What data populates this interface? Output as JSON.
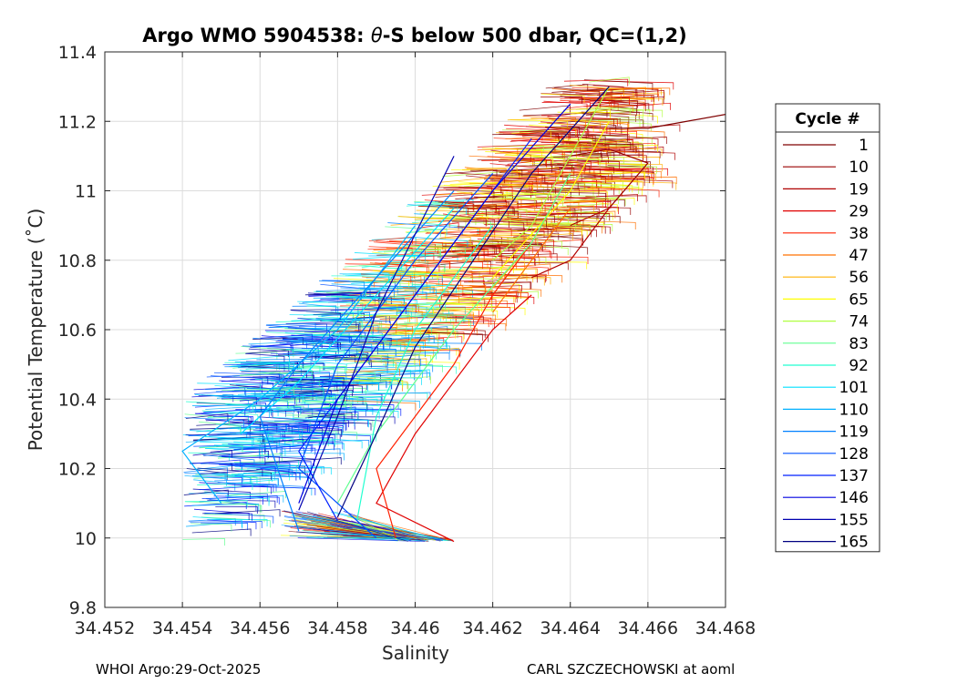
{
  "chart_data": {
    "type": "line",
    "title_prefix": "Argo WMO 5904538: ",
    "title_theta": "θ",
    "title_suffix": "-S below 500 dbar,  QC=(1,2)",
    "xlabel": "Salinity",
    "ylabel": "Potential Temperature (˚C)",
    "xlim": [
      34.452,
      34.468
    ],
    "ylim": [
      9.8,
      11.4
    ],
    "x_ticks": [
      34.452,
      34.454,
      34.456,
      34.458,
      34.46,
      34.462,
      34.464,
      34.466,
      34.468
    ],
    "x_tick_labels": [
      "34.452",
      "34.454",
      "34.456",
      "34.458",
      "34.46",
      "34.462",
      "34.464",
      "34.466",
      "34.468"
    ],
    "y_ticks": [
      9.8,
      10,
      10.2,
      10.4,
      10.6,
      10.8,
      11,
      11.2,
      11.4
    ],
    "y_tick_labels": [
      "9.8",
      "10",
      "10.2",
      "10.4",
      "10.6",
      "10.8",
      "11",
      "11.2",
      "11.4"
    ],
    "grid": true,
    "legend_title": "Cycle #",
    "legend_placement": "right-outside",
    "series": [
      {
        "name": "1",
        "color": "#7f0000",
        "points": [
          [
            34.465,
            11.18
          ],
          [
            34.466,
            11.18
          ],
          [
            34.467,
            11.2
          ],
          [
            34.468,
            11.22
          ]
        ]
      },
      {
        "name": "10",
        "color": "#9a0000",
        "points": [
          [
            34.464,
            11.1
          ],
          [
            34.465,
            11.12
          ],
          [
            34.466,
            11.08
          ],
          [
            34.465,
            10.95
          ]
        ]
      },
      {
        "name": "19",
        "color": "#b00000",
        "points": [
          [
            34.464,
            10.9
          ],
          [
            34.465,
            10.95
          ],
          [
            34.464,
            10.8
          ],
          [
            34.463,
            10.75
          ]
        ]
      },
      {
        "name": "29",
        "color": "#e00000",
        "points": [
          [
            34.463,
            10.7
          ],
          [
            34.462,
            10.6
          ],
          [
            34.461,
            10.45
          ],
          [
            34.46,
            10.3
          ],
          [
            34.459,
            10.1
          ],
          [
            34.461,
            9.99
          ]
        ]
      },
      {
        "name": "38",
        "color": "#ff2000",
        "points": [
          [
            34.463,
            10.85
          ],
          [
            34.462,
            10.7
          ],
          [
            34.461,
            10.5
          ],
          [
            34.459,
            10.2
          ],
          [
            34.4595,
            10.0
          ]
        ]
      },
      {
        "name": "47",
        "color": "#ff7000",
        "points": [
          [
            34.464,
            10.95
          ],
          [
            34.463,
            10.8
          ],
          [
            34.462,
            10.65
          ]
        ]
      },
      {
        "name": "56",
        "color": "#ffb000",
        "points": [
          [
            34.464,
            11.05
          ],
          [
            34.463,
            10.85
          ],
          [
            34.462,
            10.72
          ]
        ]
      },
      {
        "name": "65",
        "color": "#ffff00",
        "points": [
          [
            34.465,
            11.2
          ],
          [
            34.464,
            11.0
          ],
          [
            34.462,
            10.75
          ]
        ]
      },
      {
        "name": "74",
        "color": "#b0ff40",
        "points": [
          [
            34.465,
            11.3
          ],
          [
            34.464,
            11.1
          ],
          [
            34.463,
            10.9
          ],
          [
            34.462,
            10.8
          ]
        ]
      },
      {
        "name": "83",
        "color": "#60ff90",
        "points": [
          [
            34.464,
            11.05
          ],
          [
            34.463,
            10.85
          ],
          [
            34.461,
            10.6
          ],
          [
            34.459,
            10.3
          ],
          [
            34.458,
            10.1
          ]
        ]
      },
      {
        "name": "92",
        "color": "#20ffd0",
        "points": [
          [
            34.462,
            10.9
          ],
          [
            34.46,
            10.6
          ],
          [
            34.459,
            10.35
          ],
          [
            34.4585,
            10.05
          ]
        ]
      },
      {
        "name": "101",
        "color": "#00e0ff",
        "points": [
          [
            34.461,
            10.95
          ],
          [
            34.459,
            10.7
          ],
          [
            34.457,
            10.45
          ],
          [
            34.4555,
            10.3
          ]
        ]
      },
      {
        "name": "110",
        "color": "#00b0ff",
        "points": [
          [
            34.46,
            10.9
          ],
          [
            34.458,
            10.6
          ],
          [
            34.456,
            10.4
          ],
          [
            34.454,
            10.25
          ],
          [
            34.455,
            10.1
          ]
        ]
      },
      {
        "name": "119",
        "color": "#0080ff",
        "points": [
          [
            34.461,
            11.0
          ],
          [
            34.459,
            10.75
          ],
          [
            34.457,
            10.5
          ],
          [
            34.456,
            10.35
          ],
          [
            34.457,
            10.02
          ]
        ]
      },
      {
        "name": "128",
        "color": "#0050ff",
        "points": [
          [
            34.462,
            11.05
          ],
          [
            34.46,
            10.8
          ],
          [
            34.458,
            10.5
          ],
          [
            34.457,
            10.2
          ],
          [
            34.459,
            10.0
          ]
        ]
      },
      {
        "name": "137",
        "color": "#0020ff",
        "points": [
          [
            34.463,
            11.15
          ],
          [
            34.461,
            10.85
          ],
          [
            34.459,
            10.55
          ],
          [
            34.457,
            10.25
          ],
          [
            34.458,
            10.05
          ]
        ]
      },
      {
        "name": "146",
        "color": "#0000e0",
        "points": [
          [
            34.464,
            11.25
          ],
          [
            34.462,
            11.0
          ],
          [
            34.46,
            10.7
          ],
          [
            34.458,
            10.4
          ],
          [
            34.457,
            10.1
          ]
        ]
      },
      {
        "name": "155",
        "color": "#0000b0",
        "points": [
          [
            34.461,
            11.1
          ],
          [
            34.459,
            10.65
          ],
          [
            34.458,
            10.35
          ],
          [
            34.457,
            10.08
          ]
        ]
      },
      {
        "name": "165",
        "color": "#000080",
        "points": [
          [
            34.465,
            11.3
          ],
          [
            34.463,
            11.05
          ],
          [
            34.46,
            10.55
          ],
          [
            34.459,
            10.3
          ],
          [
            34.458,
            10.06
          ]
        ]
      }
    ]
  },
  "footer": {
    "left": "WHOI Argo:29-Oct-2025",
    "right": "CARL SZCZECHOWSKI at aoml"
  }
}
